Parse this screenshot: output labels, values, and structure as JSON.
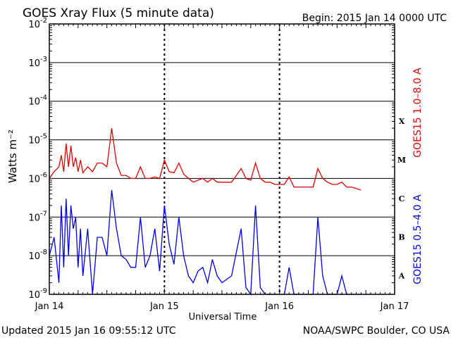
{
  "title": "GOES Xray Flux (5 minute data)",
  "begin_label": "Begin:  2015 Jan 14 0000 UTC",
  "updated_label": "Updated 2015 Jan 16 09:55:12 UTC",
  "credit_label": "NOAA/SWPC Boulder, CO USA",
  "colors": {
    "long_channel": "#e00000",
    "short_channel": "#0000e0",
    "axes": "#000000"
  },
  "chart_data": {
    "type": "line",
    "title": "GOES Xray Flux (5 minute data)",
    "xlabel": "Universal Time",
    "ylabel": "Watts m⁻²",
    "y_scale": "log",
    "ylim": [
      1e-09,
      0.01
    ],
    "xlim": [
      "2015-01-14 00:00",
      "2015-01-17 00:00"
    ],
    "x_ticks": [
      "Jan 14",
      "Jan 15",
      "Jan 16",
      "Jan 17"
    ],
    "y_ticks": [
      {
        "mant": "10",
        "exp": "-9"
      },
      {
        "mant": "10",
        "exp": "-8"
      },
      {
        "mant": "10",
        "exp": "-7"
      },
      {
        "mant": "10",
        "exp": "-6"
      },
      {
        "mant": "10",
        "exp": "-5"
      },
      {
        "mant": "10",
        "exp": "-4"
      },
      {
        "mant": "10",
        "exp": "-3"
      },
      {
        "mant": "10",
        "exp": "-2"
      }
    ],
    "flare_classes": [
      "A",
      "B",
      "C",
      "M",
      "X"
    ],
    "grid": true,
    "series": [
      {
        "name": "GOES15 1.0–8.0 A",
        "x_hours": [
          0,
          1,
          2,
          2.5,
          3,
          3.5,
          4,
          4.5,
          5,
          5.5,
          6,
          6.5,
          7,
          8,
          9,
          10,
          11,
          12,
          13,
          14,
          15,
          16,
          17,
          18,
          19,
          20,
          21,
          22,
          23,
          24,
          25,
          26,
          27,
          28,
          29,
          30,
          31,
          32,
          33,
          34,
          35,
          36,
          38,
          40,
          41,
          42,
          43,
          44,
          45,
          46,
          47,
          48,
          49,
          50,
          51,
          52,
          53,
          54,
          55,
          56,
          57,
          58,
          59,
          60,
          61,
          62,
          63,
          64,
          65
        ],
        "values": [
          1e-06,
          1.5e-06,
          2e-06,
          4e-06,
          1.5e-06,
          8e-06,
          2e-06,
          7e-06,
          2e-06,
          3.5e-06,
          1.5e-06,
          3e-06,
          1.4e-06,
          2e-06,
          1.5e-06,
          2.5e-06,
          2.5e-06,
          2e-06,
          2e-05,
          2.5e-06,
          1.2e-06,
          1.2e-06,
          1e-06,
          1e-06,
          2e-06,
          1e-06,
          1e-06,
          1.1e-06,
          1e-06,
          3e-06,
          1.5e-06,
          1.4e-06,
          2.5e-06,
          1.3e-06,
          1e-06,
          8e-07,
          9e-07,
          1e-06,
          8e-07,
          1e-06,
          8e-07,
          8e-07,
          8e-07,
          1.8e-06,
          1e-06,
          9e-07,
          2.5e-06,
          1e-06,
          8e-07,
          8e-07,
          7e-07,
          7e-07,
          7e-07,
          1.1e-06,
          6e-07,
          6e-07,
          6e-07,
          6e-07,
          6e-07,
          1.8e-06,
          1e-06,
          8e-07,
          7e-07,
          7e-07,
          8e-07,
          6e-07,
          6e-07,
          5.5e-07,
          5e-07
        ],
        "color": "#e00000"
      },
      {
        "name": "GOES15 0.5–4.0 A",
        "x_hours": [
          0,
          1,
          2,
          2.5,
          3,
          3.5,
          4,
          4.5,
          5,
          5.5,
          6,
          6.5,
          7,
          8,
          9,
          10,
          11,
          12,
          13,
          14,
          15,
          16,
          17,
          18,
          19,
          20,
          21,
          22,
          23,
          24,
          25,
          26,
          27,
          28,
          29,
          30,
          31,
          32,
          33,
          34,
          35,
          36,
          38,
          40,
          41,
          42,
          43,
          44,
          45,
          46,
          47,
          48,
          49,
          50,
          51,
          52,
          53,
          54,
          55,
          56,
          57,
          58,
          59,
          60,
          61,
          62,
          63,
          64,
          65
        ],
        "values": [
          1e-08,
          3e-08,
          2e-09,
          2e-07,
          5e-09,
          3e-07,
          1e-08,
          2e-07,
          5e-08,
          1e-07,
          5e-09,
          5e-08,
          3e-09,
          5e-08,
          1e-09,
          3e-08,
          3e-08,
          1e-08,
          5e-07,
          5e-08,
          1e-08,
          8e-09,
          5e-09,
          5e-09,
          1e-07,
          5e-09,
          1e-08,
          5e-08,
          4e-09,
          2e-07,
          2e-08,
          6e-09,
          1e-07,
          1e-08,
          3e-09,
          2e-09,
          4e-09,
          5e-09,
          2e-09,
          8e-09,
          3e-09,
          2e-09,
          3e-09,
          5e-08,
          1.5e-09,
          1e-09,
          2e-07,
          1.5e-09,
          1e-09,
          1e-09,
          1e-09,
          1e-09,
          1e-09,
          5e-09,
          1e-09,
          1e-09,
          1e-09,
          1e-09,
          1e-09,
          1e-07,
          3e-09,
          1e-09,
          1e-09,
          1e-09,
          3e-09,
          1e-09,
          1e-09,
          1e-09,
          1e-09
        ],
        "color": "#0000e0"
      }
    ]
  }
}
